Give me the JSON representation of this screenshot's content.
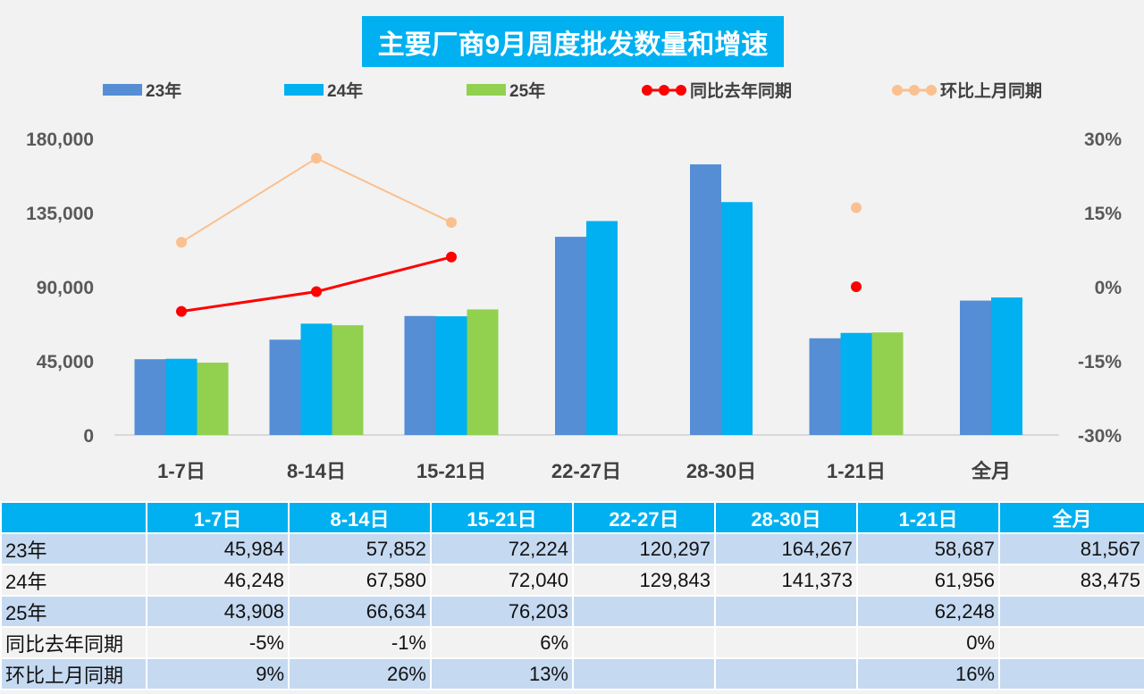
{
  "chart_data": {
    "type": "bar+line",
    "title": "主要厂商9月周度批发数量和增速",
    "categories": [
      "1-7日",
      "8-14日",
      "15-21日",
      "22-27日",
      "28-30日",
      "1-21日",
      "全月"
    ],
    "left_axis": {
      "range": [
        0,
        180000
      ],
      "ticks": [
        "0",
        "45,000",
        "90,000",
        "135,000",
        "180,000"
      ]
    },
    "right_axis": {
      "range": [
        -30,
        30
      ],
      "ticks": [
        "-30%",
        "-15%",
        "0%",
        "15%",
        "30%"
      ]
    },
    "bar_series": [
      {
        "name": "23年",
        "color": "#558ed5",
        "values": [
          45984,
          57852,
          72224,
          120297,
          164267,
          58687,
          81567
        ]
      },
      {
        "name": "24年",
        "color": "#00b0f0",
        "values": [
          46248,
          67580,
          72040,
          129843,
          141373,
          61956,
          83475
        ]
      },
      {
        "name": "25年",
        "color": "#92d050",
        "values": [
          43908,
          66634,
          76203,
          null,
          null,
          62248,
          null
        ]
      }
    ],
    "line_series": [
      {
        "name": "同比去年同期",
        "color": "#ff0000",
        "values": [
          -5,
          -1,
          6,
          null,
          null,
          0,
          null
        ]
      },
      {
        "name": "环比上月同期",
        "color": "#fac090",
        "values": [
          9,
          26,
          13,
          null,
          null,
          16,
          null
        ]
      }
    ],
    "legend_position": "top",
    "grid": false
  },
  "table": {
    "headers": [
      "",
      "1-7日",
      "8-14日",
      "15-21日",
      "22-27日",
      "28-30日",
      "1-21日",
      "全月"
    ],
    "rows": [
      [
        "23年",
        "45,984",
        "57,852",
        "72,224",
        "120,297",
        "164,267",
        "58,687",
        "81,567"
      ],
      [
        "24年",
        "46,248",
        "67,580",
        "72,040",
        "129,843",
        "141,373",
        "61,956",
        "83,475"
      ],
      [
        "25年",
        "43,908",
        "66,634",
        "76,203",
        "",
        "",
        "62,248",
        ""
      ],
      [
        "同比去年同期",
        "-5%",
        "-1%",
        "6%",
        "",
        "",
        "0%",
        ""
      ],
      [
        "环比上月同期",
        "9%",
        "26%",
        "13%",
        "",
        "",
        "16%",
        ""
      ]
    ]
  }
}
